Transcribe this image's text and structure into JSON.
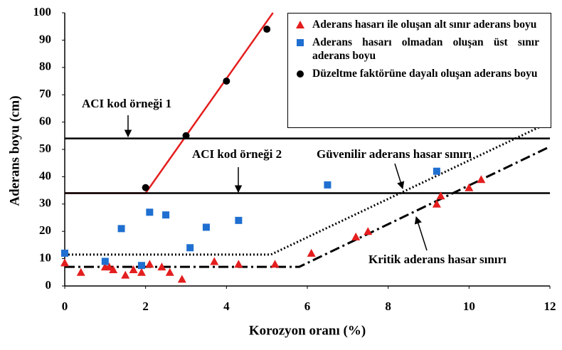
{
  "chart_data": {
    "type": "scatter",
    "xlabel": "Korozyon oranı (%)",
    "ylabel": "Aderans boyu (cm)",
    "xlim": [
      0,
      12
    ],
    "xticks": [
      0,
      2,
      4,
      6,
      8,
      10,
      12
    ],
    "ylim": [
      0,
      100
    ],
    "yticks": [
      0,
      10,
      20,
      30,
      40,
      50,
      60,
      70,
      80,
      90,
      100
    ],
    "series": [
      {
        "name": "Aderans hasarı ile oluşan alt sınır aderans boyu",
        "color": "#e41e1e",
        "marker": "triangle",
        "x": [
          0,
          0.4,
          1,
          1.1,
          1.2,
          1.5,
          1.7,
          1.9,
          2.1,
          2.4,
          2.6,
          2.9,
          3.7,
          4.3,
          5.2,
          6.1,
          7.2,
          7.5,
          9.2,
          9.3,
          10,
          10.3
        ],
        "values": [
          8.5,
          5,
          7,
          7,
          6,
          4,
          6,
          5,
          8,
          7,
          5,
          2.5,
          9,
          8,
          8,
          12,
          18,
          20,
          30,
          33,
          36,
          39
        ]
      },
      {
        "name": "Aderans hasarı olmadan oluşan üst sınır aderans boyu",
        "color": "#1f6fd1",
        "marker": "square",
        "x": [
          0,
          1,
          1.4,
          1.9,
          2.1,
          2.5,
          3.1,
          3.5,
          4.3,
          6.5,
          9.2
        ],
        "values": [
          12,
          9,
          21,
          7.5,
          27,
          26,
          14,
          21.5,
          24,
          37,
          42
        ]
      },
      {
        "name": "Düzeltme faktörüne dayalı oluşan aderans boyu",
        "color": "#000000",
        "marker": "circle",
        "x": [
          2,
          3,
          4,
          5
        ],
        "values": [
          36,
          55,
          75,
          94
        ]
      }
    ],
    "lines": [
      {
        "x": [
          0,
          2,
          5.15
        ],
        "values": [
          34,
          34,
          100
        ],
        "color": "#e41e1e",
        "style": "solid"
      },
      {
        "x": [
          0,
          12
        ],
        "values": [
          54,
          54
        ],
        "color": "#000000",
        "style": "solid"
      },
      {
        "x": [
          0,
          12
        ],
        "values": [
          34,
          34
        ],
        "color": "#000000",
        "style": "solid"
      },
      {
        "x": [
          0,
          5.1,
          12
        ],
        "values": [
          11.5,
          11.5,
          60
        ],
        "color": "#000000",
        "style": "dotted"
      },
      {
        "x": [
          0,
          5.8,
          12
        ],
        "values": [
          7,
          7,
          51
        ],
        "color": "#000000",
        "style": "dashdot"
      }
    ],
    "annotations": [
      "ACI kod örneği 1",
      "ACI kod örneği 2",
      "Güvenilir aderans hasar sınırı",
      "Kritik aderans hasar sınırı"
    ],
    "legend": "upper right"
  }
}
